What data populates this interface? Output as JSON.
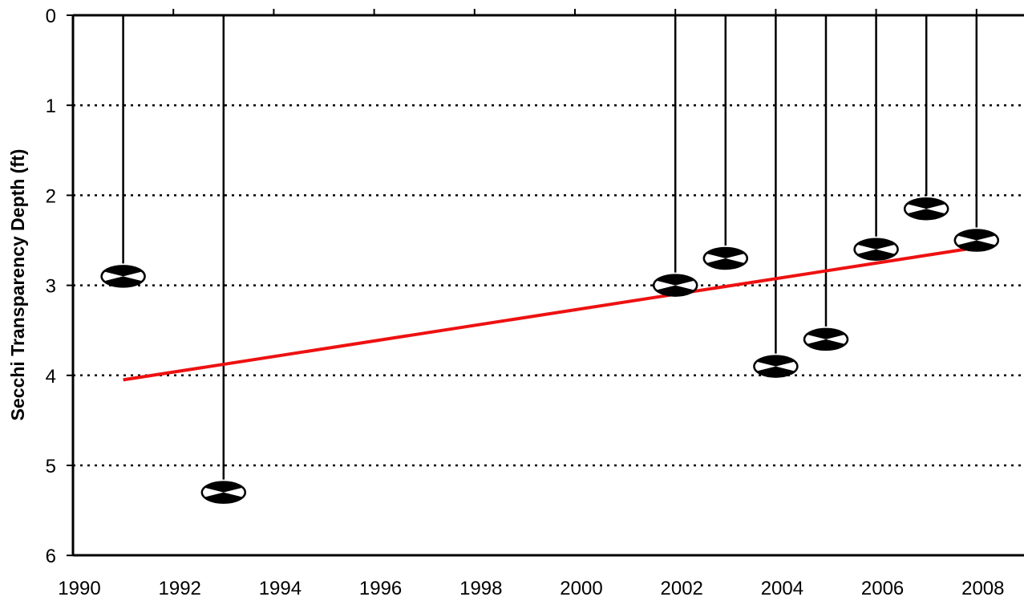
{
  "chart_data": {
    "type": "scatter",
    "title": "",
    "xlabel": "",
    "ylabel": "Secchi Transparency Depth (ft)",
    "xlim": [
      1990,
      2009
    ],
    "ylim": [
      0,
      6
    ],
    "y_inverted": true,
    "x_ticks": [
      "1990",
      "1992",
      "1994",
      "1996",
      "1998",
      "2000",
      "2002",
      "2004",
      "2006",
      "2008"
    ],
    "y_ticks": [
      "0",
      "1",
      "2",
      "3",
      "4",
      "5",
      "6"
    ],
    "grid": "horizontal dotted",
    "marker": "secchi-disk",
    "series": [
      {
        "x": [
          1991,
          1993,
          2002,
          2003,
          2004,
          2005,
          2006,
          2007,
          2008
        ],
        "y": [
          2.9,
          5.3,
          3.0,
          2.7,
          3.9,
          3.6,
          2.6,
          2.15,
          2.5
        ]
      }
    ],
    "trend_line": {
      "x": [
        1991,
        2008
      ],
      "y": [
        4.05,
        2.58
      ],
      "color": "#ee1111"
    }
  }
}
